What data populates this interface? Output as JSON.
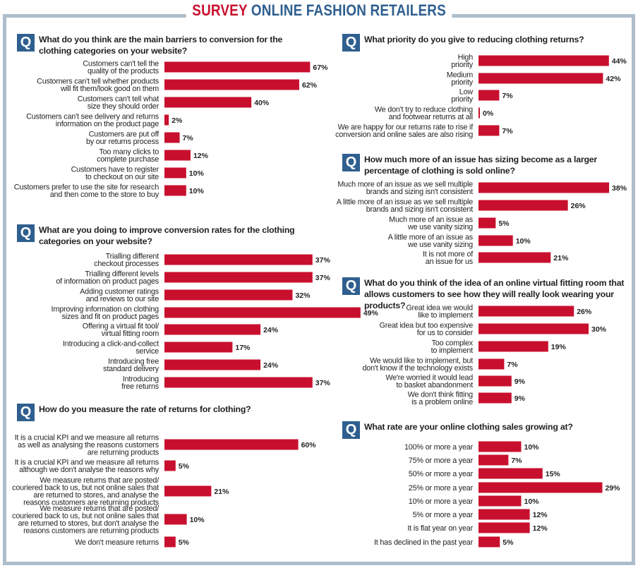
{
  "header": {
    "title_red": "SURVEY",
    "title_blue": "ONLINE FASHION RETAILERS"
  },
  "badge_letter": "Q",
  "colors": {
    "bar": "#c8102e",
    "badge": "#2f5f8f",
    "frame": "#aebdca"
  },
  "chart_data": [
    {
      "type": "bar",
      "orientation": "horizontal",
      "title": "What do you think are the main barriers to conversion for the clothing categories on your website?",
      "unit": "%",
      "categories": [
        [
          "Customers can't tell the",
          "quality of the products"
        ],
        [
          "Customers can't tell whether products",
          "will fit them/look good on them"
        ],
        [
          "Customers can't tell what",
          "size they should order"
        ],
        [
          "Customers can't see delivery and returns",
          "information on the product page"
        ],
        [
          "Customers are put off",
          "by our returns process"
        ],
        [
          "Too many clicks to",
          "complete purchase"
        ],
        [
          "Customers have to register",
          "to checkout on our site"
        ],
        [
          "Customers prefer to use the site for research",
          "and then come to the store to buy"
        ]
      ],
      "values": [
        67,
        62,
        40,
        2,
        7,
        12,
        10,
        10
      ]
    },
    {
      "type": "bar",
      "orientation": "horizontal",
      "title": "What are you doing to improve conversion rates for the clothing categories on your website?",
      "unit": "%",
      "categories": [
        [
          "Trialling different",
          "checkout processes"
        ],
        [
          "Trialling different levels",
          "of information on product pages"
        ],
        [
          "Adding customer ratings",
          "and reviews to our site"
        ],
        [
          "Improving information on clothing",
          "sizes and fit on product pages"
        ],
        [
          "Offering a virtual fit tool/",
          "virtual fitting room"
        ],
        [
          "Introducing a click-and-collect",
          "service"
        ],
        [
          "Introducing free",
          "standard delivery"
        ],
        [
          "Introducing",
          "free returns"
        ]
      ],
      "values": [
        37,
        37,
        32,
        49,
        24,
        17,
        24,
        37
      ]
    },
    {
      "type": "bar",
      "orientation": "horizontal",
      "title": "How do you measure the rate of returns for clothing?",
      "unit": "%",
      "categories": [
        [
          "It is a crucial KPI and we measure all returns",
          "as well as analysing the reasons customers",
          "are returning products"
        ],
        [
          "It is a crucial KPI and we measure all returns",
          "although we don't analyse the reasons why"
        ],
        [
          "We measure returns that are posted/",
          "couriered back to us, but not online sales that",
          "are returned to stores, and analyse the",
          "reasons customers are returning products"
        ],
        [
          "We measure returns that are posted/",
          "couriered back to us, but not online sales that",
          "are returned to stores, but don't analyse the",
          "reasons customers are returning products"
        ],
        [
          "We don't measure returns"
        ]
      ],
      "values": [
        60,
        5,
        21,
        10,
        5
      ]
    },
    {
      "type": "bar",
      "orientation": "horizontal",
      "title": "What priority do you give to reducing clothing returns?",
      "unit": "%",
      "categories": [
        [
          "High",
          "priority"
        ],
        [
          "Medium",
          "priority"
        ],
        [
          "Low",
          "priority"
        ],
        [
          "We don't try to reduce clothing",
          "and footwear returns at all"
        ],
        [
          "We are happy for our returns rate to rise if",
          "conversion and online sales are also rising"
        ]
      ],
      "values": [
        44,
        42,
        7,
        0,
        7
      ]
    },
    {
      "type": "bar",
      "orientation": "horizontal",
      "title": "How much more of an issue has sizing become as a larger percentage of clothing is sold online?",
      "unit": "%",
      "categories": [
        [
          "Much more of an issue as we sell multiple",
          "brands and sizing isn't consistent"
        ],
        [
          "A little more of an issue as we sell multiple",
          "brands and sizing isn't consistent"
        ],
        [
          "Much more of an issue as",
          "we use vanity sizing"
        ],
        [
          "A little more of an issue as",
          "we use vanity sizing"
        ],
        [
          "It is not more of",
          "an issue for us"
        ]
      ],
      "values": [
        38,
        26,
        5,
        10,
        21
      ]
    },
    {
      "type": "bar",
      "orientation": "horizontal",
      "title": "What do you think of the idea of an online virtual fitting room that allows customers to see how they will really look wearing your products?",
      "unit": "%",
      "categories": [
        [
          "Great idea we would",
          "like to implement"
        ],
        [
          "Great idea but too expensive",
          "for us to consider"
        ],
        [
          "Too complex",
          "to implement"
        ],
        [
          "We would like to implement, but",
          "don't know if the technology exists"
        ],
        [
          "We're worried it would lead",
          "to basket abandonment"
        ],
        [
          "We don't think fitting",
          "is a problem online"
        ]
      ],
      "values": [
        26,
        30,
        19,
        7,
        9,
        9
      ]
    },
    {
      "type": "bar",
      "orientation": "horizontal",
      "title": "What rate are your online clothing sales growing at?",
      "unit": "%",
      "categories": [
        [
          "100% or more a year"
        ],
        [
          "75% or more a year"
        ],
        [
          "50% or more a year"
        ],
        [
          "25% or more a year"
        ],
        [
          "10% or more a year"
        ],
        [
          "5% or more a year"
        ],
        [
          "It is flat year on year"
        ],
        [
          "It has declined in the past year"
        ]
      ],
      "values": [
        10,
        7,
        15,
        29,
        10,
        12,
        12,
        5
      ]
    }
  ]
}
